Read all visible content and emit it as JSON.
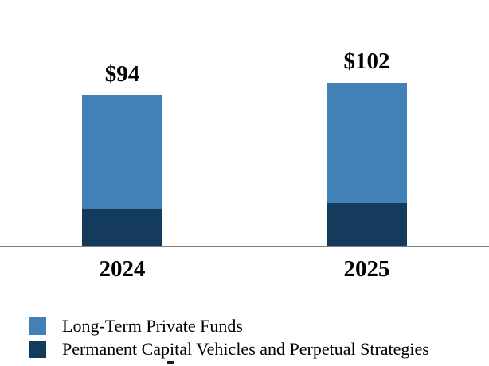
{
  "chart_data": {
    "type": "bar",
    "stacked": true,
    "title": "",
    "xlabel": "",
    "ylabel": "",
    "categories": [
      "2024",
      "2025"
    ],
    "series": [
      {
        "name": "Long-Term Private Funds",
        "color": "#4181B6",
        "values": [
          71,
          75
        ],
        "values_estimated_from_pixels": true
      },
      {
        "name": "Permanent Capital Vehicles and Perpetual Strategies",
        "color": "#143A5C",
        "values": [
          23,
          27
        ],
        "values_estimated_from_pixels": true
      }
    ],
    "totals": [
      94,
      102
    ],
    "total_labels": [
      "$94",
      "$102"
    ],
    "ylim": [
      0,
      110
    ],
    "grid": false,
    "y_axis_visible": false,
    "legend_position": "bottom-left",
    "axis_line_color": "#7f7f7f",
    "label_color": "#000000"
  },
  "legend": {
    "items": [
      {
        "label": "Long-Term Private Funds",
        "color": "#4181B6"
      },
      {
        "label": "Permanent Capital Vehicles and Perpetual Strategies",
        "color": "#143A5C"
      }
    ]
  }
}
